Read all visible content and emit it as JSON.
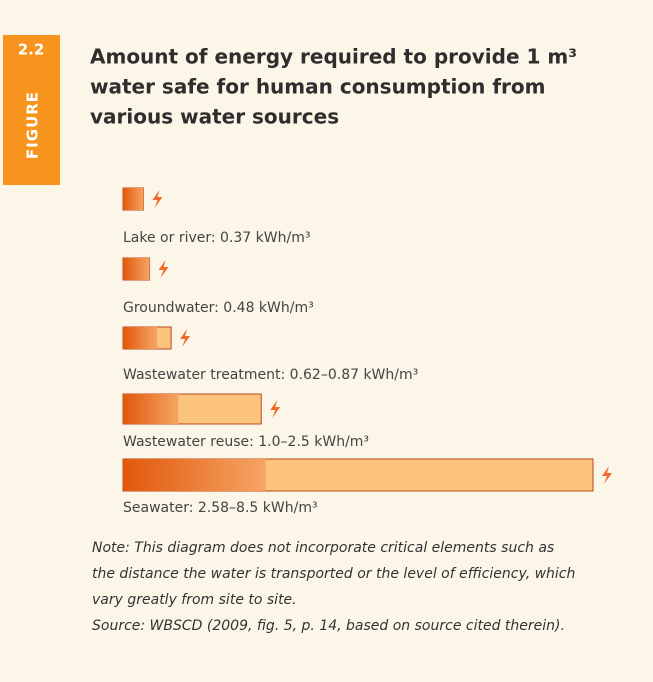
{
  "chart_data": {
    "type": "range-bar",
    "badge": "2.2",
    "badge_label": "FIGURE",
    "title_lines": [
      "Amount of energy required to provide 1 m³",
      "water safe for human consumption from",
      "various water sources"
    ],
    "items": [
      {
        "label": "Lake or river: 0.37 kWh/m³",
        "low": 0.37,
        "high": 0.37
      },
      {
        "label": "Groundwater: 0.48 kWh/m³",
        "low": 0.48,
        "high": 0.48
      },
      {
        "label": "Wastewater treatment: 0.62–0.87 kWh/m³",
        "low": 0.62,
        "high": 0.87
      },
      {
        "label": "Wastewater reuse: 1.0–2.5 kWh/m³",
        "low": 1.0,
        "high": 2.5
      },
      {
        "label": "Seawater: 2.58–8.5 kWh/m³",
        "low": 2.58,
        "high": 8.5
      }
    ],
    "note_lines": [
      "Note: This diagram does not incorporate critical elements such as",
      "the distance the water is transported or the level of efficiency, which",
      "vary greatly from site to site."
    ],
    "source": "Source: WBSCD (2009, fig. 5, p. 14, based on source cited therein)."
  }
}
